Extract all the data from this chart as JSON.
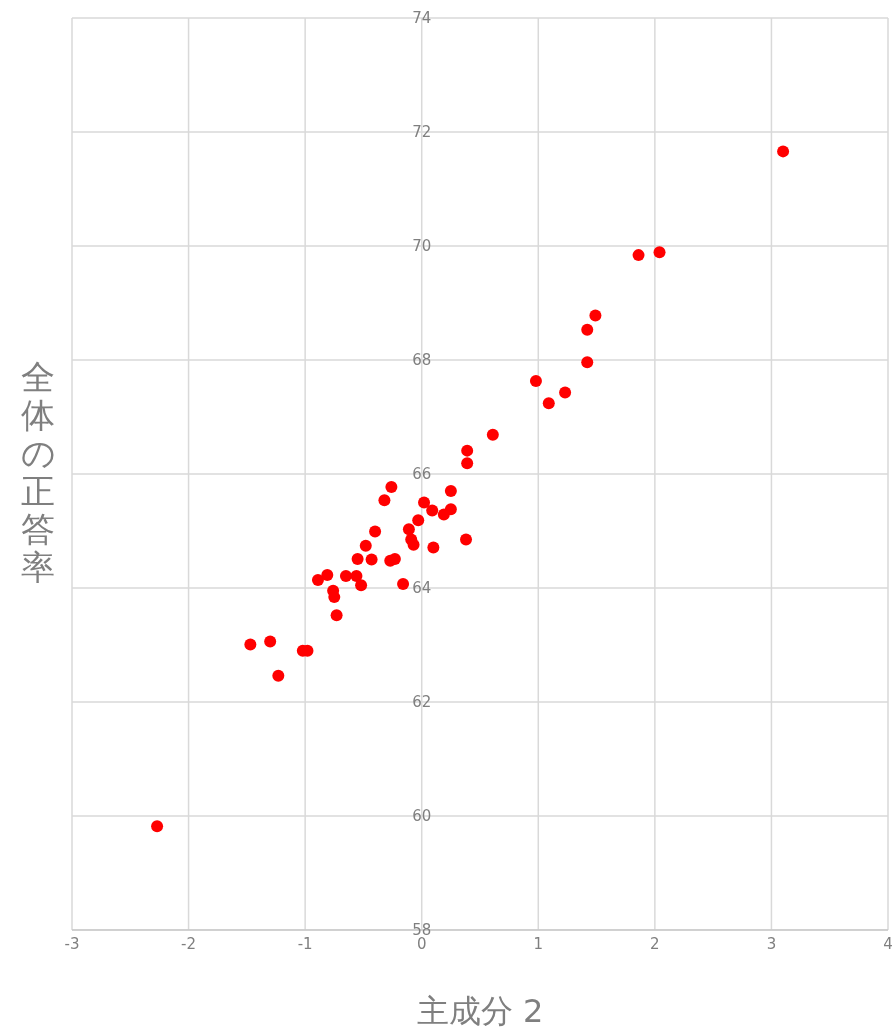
{
  "chart_data": {
    "type": "scatter",
    "xlabel": "主成分 2",
    "ylabel": "全体の正答率",
    "xlim": [
      -3,
      4
    ],
    "xticks": [
      -3,
      -2,
      -1,
      0,
      1,
      2,
      3,
      4
    ],
    "ylim": [
      58,
      74
    ],
    "yticks": [
      58,
      60,
      62,
      64,
      66,
      68,
      70,
      72,
      74
    ],
    "grid": true,
    "marker": "circle",
    "series": [
      {
        "color": "#ff0000",
        "x": [
          3.1,
          1.86,
          2.04,
          1.49,
          1.42,
          1.42,
          0.98,
          1.23,
          1.09,
          0.61,
          0.39,
          0.39,
          -0.26,
          0.25,
          -0.32,
          0.02,
          0.09,
          0.25,
          0.19,
          -0.03,
          -0.4,
          -0.11,
          -0.09,
          -0.07,
          0.38,
          0.1,
          -0.48,
          -0.55,
          -0.43,
          -0.27,
          -0.23,
          -0.81,
          -0.65,
          -0.56,
          -0.89,
          -0.52,
          -0.16,
          -0.76,
          -0.75,
          -0.73,
          -1.47,
          -1.3,
          -1.02,
          -0.98,
          -1.23,
          -2.27
        ],
        "values": [
          71.66,
          69.84,
          69.89,
          68.78,
          68.53,
          67.96,
          67.63,
          67.43,
          67.24,
          66.69,
          66.41,
          66.19,
          65.77,
          65.7,
          65.54,
          65.5,
          65.36,
          65.38,
          65.29,
          65.19,
          64.99,
          65.03,
          64.85,
          64.76,
          64.85,
          64.71,
          64.74,
          64.51,
          64.5,
          64.48,
          64.51,
          64.23,
          64.21,
          64.21,
          64.14,
          64.05,
          64.07,
          63.95,
          63.84,
          63.52,
          63.01,
          63.06,
          62.9,
          62.9,
          62.46,
          59.82
        ]
      }
    ]
  }
}
